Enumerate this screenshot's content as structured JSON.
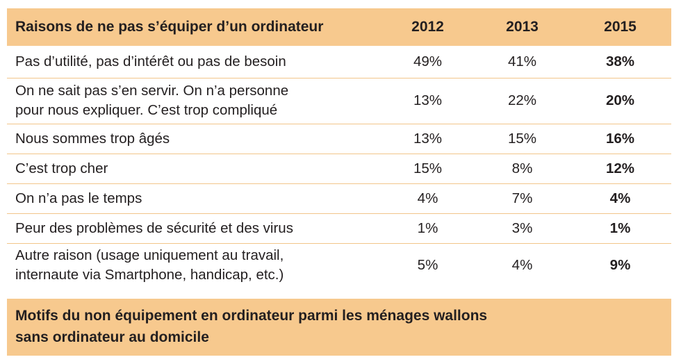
{
  "chart_data": {
    "type": "table",
    "columns": [
      "Raisons de ne pas s’équiper d’un ordinateur",
      "2012",
      "2013",
      "2015"
    ],
    "rows": [
      {
        "label_lines": [
          "Pas d’utilité, pas d’intérêt ou pas de besoin"
        ],
        "values": [
          "49%",
          "41%",
          "38%"
        ]
      },
      {
        "label_lines": [
          "On ne sait pas s’en servir. On n’a personne",
          "pour nous expliquer. C’est trop compliqué"
        ],
        "values": [
          "13%",
          "22%",
          "20%"
        ]
      },
      {
        "label_lines": [
          "Nous sommes trop âgés"
        ],
        "values": [
          "13%",
          "15%",
          "16%"
        ]
      },
      {
        "label_lines": [
          "C’est trop cher"
        ],
        "values": [
          "15%",
          "8%",
          "12%"
        ]
      },
      {
        "label_lines": [
          "On n’a pas le temps"
        ],
        "values": [
          "4%",
          "7%",
          "4%"
        ]
      },
      {
        "label_lines": [
          "Peur des problèmes de sécurité et des virus"
        ],
        "values": [
          "1%",
          "3%",
          "1%"
        ]
      },
      {
        "label_lines": [
          "Autre raison (usage uniquement au travail,",
          "internaute via Smartphone, handicap, etc.)"
        ],
        "values": [
          "5%",
          "4%",
          "9%"
        ]
      }
    ],
    "caption_lines": [
      "Motifs du non équipement en ordinateur parmi les ménages wallons",
      "sans ordinateur au domicile"
    ]
  },
  "colors": {
    "header_background": "#f7c98e",
    "row_divider": "#f2c58a",
    "text": "#231f20"
  }
}
